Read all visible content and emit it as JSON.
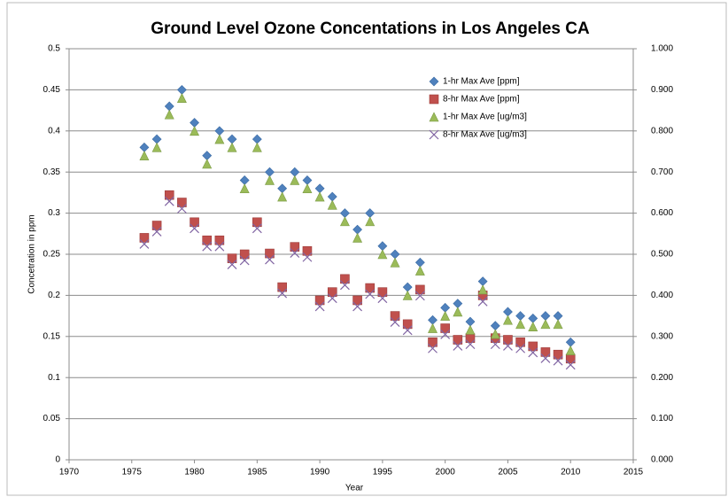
{
  "chart_data": {
    "type": "scatter",
    "title": "Ground Level Ozone Concentations in Los Angeles CA",
    "x_label": "Year",
    "y_label": "Concetration in ppm",
    "x": [
      1976,
      1977,
      1978,
      1979,
      1980,
      1981,
      1982,
      1983,
      1984,
      1985,
      1986,
      1987,
      1988,
      1989,
      1990,
      1991,
      1992,
      1993,
      1994,
      1995,
      1996,
      1997,
      1998,
      1999,
      2000,
      2001,
      2002,
      2003,
      2004,
      2005,
      2006,
      2007,
      2008,
      2009,
      2010
    ],
    "series": [
      {
        "name": "1-hr Max Ave [ppm]",
        "color": "#4f81bd",
        "marker": "diamond",
        "values": [
          0.38,
          0.39,
          0.43,
          0.45,
          0.41,
          0.37,
          0.4,
          0.39,
          0.34,
          0.39,
          0.35,
          0.33,
          0.35,
          0.34,
          0.33,
          0.32,
          0.3,
          0.28,
          0.3,
          0.26,
          0.25,
          0.21,
          0.24,
          0.17,
          0.185,
          0.19,
          0.168,
          0.217,
          0.163,
          0.18,
          0.175,
          0.172,
          0.175,
          0.175,
          0.143
        ]
      },
      {
        "name": "8-hr Max Ave [ppm]",
        "color": "#c0504d",
        "marker": "square",
        "values": [
          0.27,
          0.285,
          0.322,
          0.313,
          0.289,
          0.267,
          0.267,
          0.245,
          0.25,
          0.289,
          0.251,
          0.21,
          0.259,
          0.254,
          0.194,
          0.204,
          0.22,
          0.194,
          0.209,
          0.204,
          0.175,
          0.165,
          0.207,
          0.143,
          0.16,
          0.146,
          0.148,
          0.2,
          0.148,
          0.146,
          0.143,
          0.138,
          0.131,
          0.128,
          0.123
        ]
      },
      {
        "name": "1-hr Max Ave [ug/m3]",
        "color": "#9bbb59",
        "marker": "triangle",
        "axis": "y2",
        "values": [
          0.74,
          0.76,
          0.84,
          0.88,
          0.8,
          0.72,
          0.78,
          0.76,
          0.66,
          0.76,
          0.68,
          0.64,
          0.68,
          0.66,
          0.64,
          0.62,
          0.58,
          0.54,
          0.58,
          0.5,
          0.48,
          0.4,
          0.46,
          0.32,
          0.35,
          0.36,
          0.316,
          0.414,
          0.306,
          0.34,
          0.33,
          0.324,
          0.33,
          0.33,
          0.266
        ]
      },
      {
        "name": "8-hr Max Ave [ug/m3]",
        "color": "#8064a2",
        "marker": "x",
        "axis": "y2",
        "values": [
          0.525,
          0.555,
          0.629,
          0.611,
          0.563,
          0.519,
          0.519,
          0.475,
          0.485,
          0.563,
          0.487,
          0.405,
          0.503,
          0.493,
          0.373,
          0.393,
          0.425,
          0.373,
          0.403,
          0.393,
          0.335,
          0.315,
          0.399,
          0.271,
          0.305,
          0.277,
          0.281,
          0.385,
          0.281,
          0.277,
          0.271,
          0.261,
          0.247,
          0.241,
          0.231
        ]
      }
    ],
    "xlim": [
      1970,
      2015
    ],
    "xticks": [
      1970,
      1975,
      1980,
      1985,
      1990,
      1995,
      2000,
      2005,
      2010,
      2015
    ],
    "ylim": [
      0,
      0.5
    ],
    "yticks": [
      0,
      0.05,
      0.1,
      0.15,
      0.2,
      0.25,
      0.3,
      0.35,
      0.4,
      0.45,
      0.5
    ],
    "y2lim": [
      0,
      1
    ],
    "y2ticks": [
      {
        "value": 0,
        "label": "0.000"
      },
      {
        "value": 0.1,
        "label": "0.100"
      },
      {
        "value": 0.2,
        "label": "0.200"
      },
      {
        "value": 0.3,
        "label": "0.300"
      },
      {
        "value": 0.4,
        "label": "0.400"
      },
      {
        "value": 0.5,
        "label": "0.500"
      },
      {
        "value": 0.6,
        "label": "0.600"
      },
      {
        "value": 0.7,
        "label": "0.700"
      },
      {
        "value": 0.8,
        "label": "0.800"
      },
      {
        "value": 0.9,
        "label": "0.900"
      },
      {
        "value": 1,
        "label": "1.000"
      }
    ],
    "grid": true,
    "legend": "upper right"
  }
}
